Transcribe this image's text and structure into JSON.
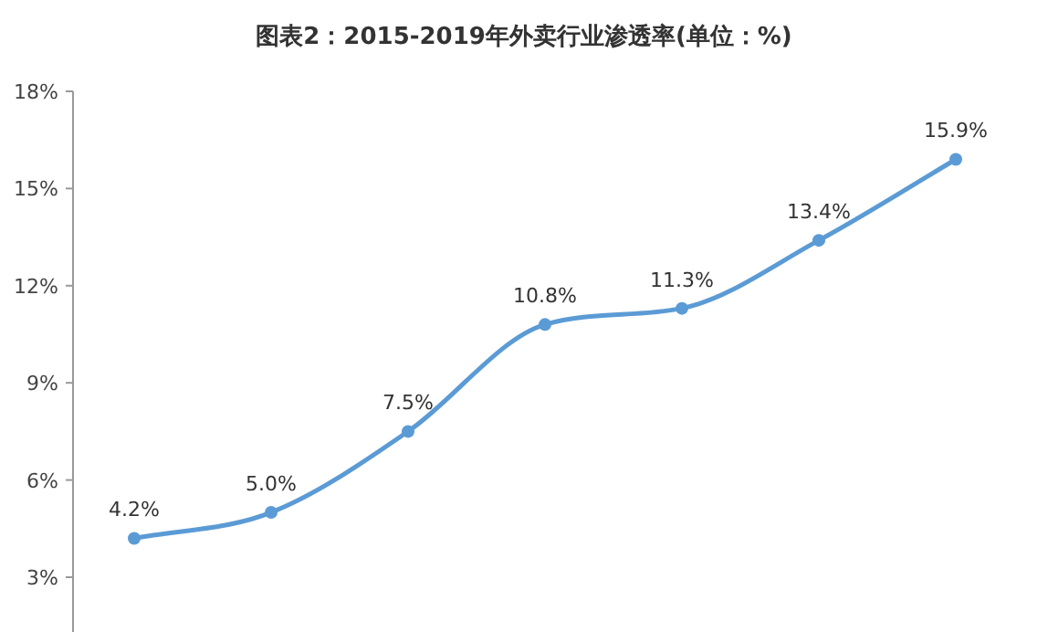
{
  "chart_data": {
    "type": "line",
    "title": "图表2：2015-2019年外卖行业渗透率(单位：%)",
    "categories": [
      null,
      null,
      null,
      null,
      null,
      null,
      null
    ],
    "values": [
      4.2,
      5.0,
      7.5,
      10.8,
      11.3,
      13.4,
      15.9
    ],
    "value_labels": [
      "4.2%",
      "5.0%",
      "7.5%",
      "10.8%",
      "11.3%",
      "13.4%",
      "15.9%"
    ],
    "color": "#5b9bd5",
    "marker": "circle",
    "ylim": [
      1.3,
      18
    ],
    "yticks": [
      {
        "value": 3,
        "label": "3%"
      },
      {
        "value": 6,
        "label": "6%"
      },
      {
        "value": 9,
        "label": "9%"
      },
      {
        "value": 12,
        "label": "12%"
      },
      {
        "value": 15,
        "label": "15%"
      },
      {
        "value": 18,
        "label": "18%"
      }
    ]
  }
}
